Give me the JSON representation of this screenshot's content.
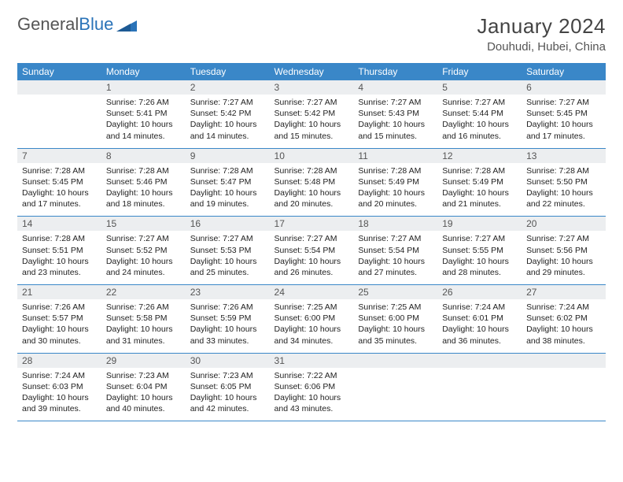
{
  "brand": {
    "part1": "General",
    "part2": "Blue"
  },
  "title": "January 2024",
  "location": "Douhudi, Hubei, China",
  "colors": {
    "header_bg": "#3a87c8",
    "header_text": "#ffffff",
    "daynum_bg": "#eceef0",
    "rule": "#3a87c8",
    "logo_blue": "#2a73b8",
    "text": "#333333"
  },
  "weekdays": [
    "Sunday",
    "Monday",
    "Tuesday",
    "Wednesday",
    "Thursday",
    "Friday",
    "Saturday"
  ],
  "start_offset": 1,
  "days": [
    {
      "n": "1",
      "sr": "7:26 AM",
      "ss": "5:41 PM",
      "dl": "10 hours and 14 minutes."
    },
    {
      "n": "2",
      "sr": "7:27 AM",
      "ss": "5:42 PM",
      "dl": "10 hours and 14 minutes."
    },
    {
      "n": "3",
      "sr": "7:27 AM",
      "ss": "5:42 PM",
      "dl": "10 hours and 15 minutes."
    },
    {
      "n": "4",
      "sr": "7:27 AM",
      "ss": "5:43 PM",
      "dl": "10 hours and 15 minutes."
    },
    {
      "n": "5",
      "sr": "7:27 AM",
      "ss": "5:44 PM",
      "dl": "10 hours and 16 minutes."
    },
    {
      "n": "6",
      "sr": "7:27 AM",
      "ss": "5:45 PM",
      "dl": "10 hours and 17 minutes."
    },
    {
      "n": "7",
      "sr": "7:28 AM",
      "ss": "5:45 PM",
      "dl": "10 hours and 17 minutes."
    },
    {
      "n": "8",
      "sr": "7:28 AM",
      "ss": "5:46 PM",
      "dl": "10 hours and 18 minutes."
    },
    {
      "n": "9",
      "sr": "7:28 AM",
      "ss": "5:47 PM",
      "dl": "10 hours and 19 minutes."
    },
    {
      "n": "10",
      "sr": "7:28 AM",
      "ss": "5:48 PM",
      "dl": "10 hours and 20 minutes."
    },
    {
      "n": "11",
      "sr": "7:28 AM",
      "ss": "5:49 PM",
      "dl": "10 hours and 20 minutes."
    },
    {
      "n": "12",
      "sr": "7:28 AM",
      "ss": "5:49 PM",
      "dl": "10 hours and 21 minutes."
    },
    {
      "n": "13",
      "sr": "7:28 AM",
      "ss": "5:50 PM",
      "dl": "10 hours and 22 minutes."
    },
    {
      "n": "14",
      "sr": "7:28 AM",
      "ss": "5:51 PM",
      "dl": "10 hours and 23 minutes."
    },
    {
      "n": "15",
      "sr": "7:27 AM",
      "ss": "5:52 PM",
      "dl": "10 hours and 24 minutes."
    },
    {
      "n": "16",
      "sr": "7:27 AM",
      "ss": "5:53 PM",
      "dl": "10 hours and 25 minutes."
    },
    {
      "n": "17",
      "sr": "7:27 AM",
      "ss": "5:54 PM",
      "dl": "10 hours and 26 minutes."
    },
    {
      "n": "18",
      "sr": "7:27 AM",
      "ss": "5:54 PM",
      "dl": "10 hours and 27 minutes."
    },
    {
      "n": "19",
      "sr": "7:27 AM",
      "ss": "5:55 PM",
      "dl": "10 hours and 28 minutes."
    },
    {
      "n": "20",
      "sr": "7:27 AM",
      "ss": "5:56 PM",
      "dl": "10 hours and 29 minutes."
    },
    {
      "n": "21",
      "sr": "7:26 AM",
      "ss": "5:57 PM",
      "dl": "10 hours and 30 minutes."
    },
    {
      "n": "22",
      "sr": "7:26 AM",
      "ss": "5:58 PM",
      "dl": "10 hours and 31 minutes."
    },
    {
      "n": "23",
      "sr": "7:26 AM",
      "ss": "5:59 PM",
      "dl": "10 hours and 33 minutes."
    },
    {
      "n": "24",
      "sr": "7:25 AM",
      "ss": "6:00 PM",
      "dl": "10 hours and 34 minutes."
    },
    {
      "n": "25",
      "sr": "7:25 AM",
      "ss": "6:00 PM",
      "dl": "10 hours and 35 minutes."
    },
    {
      "n": "26",
      "sr": "7:24 AM",
      "ss": "6:01 PM",
      "dl": "10 hours and 36 minutes."
    },
    {
      "n": "27",
      "sr": "7:24 AM",
      "ss": "6:02 PM",
      "dl": "10 hours and 38 minutes."
    },
    {
      "n": "28",
      "sr": "7:24 AM",
      "ss": "6:03 PM",
      "dl": "10 hours and 39 minutes."
    },
    {
      "n": "29",
      "sr": "7:23 AM",
      "ss": "6:04 PM",
      "dl": "10 hours and 40 minutes."
    },
    {
      "n": "30",
      "sr": "7:23 AM",
      "ss": "6:05 PM",
      "dl": "10 hours and 42 minutes."
    },
    {
      "n": "31",
      "sr": "7:22 AM",
      "ss": "6:06 PM",
      "dl": "10 hours and 43 minutes."
    }
  ],
  "labels": {
    "sunrise": "Sunrise:",
    "sunset": "Sunset:",
    "daylight": "Daylight:"
  }
}
